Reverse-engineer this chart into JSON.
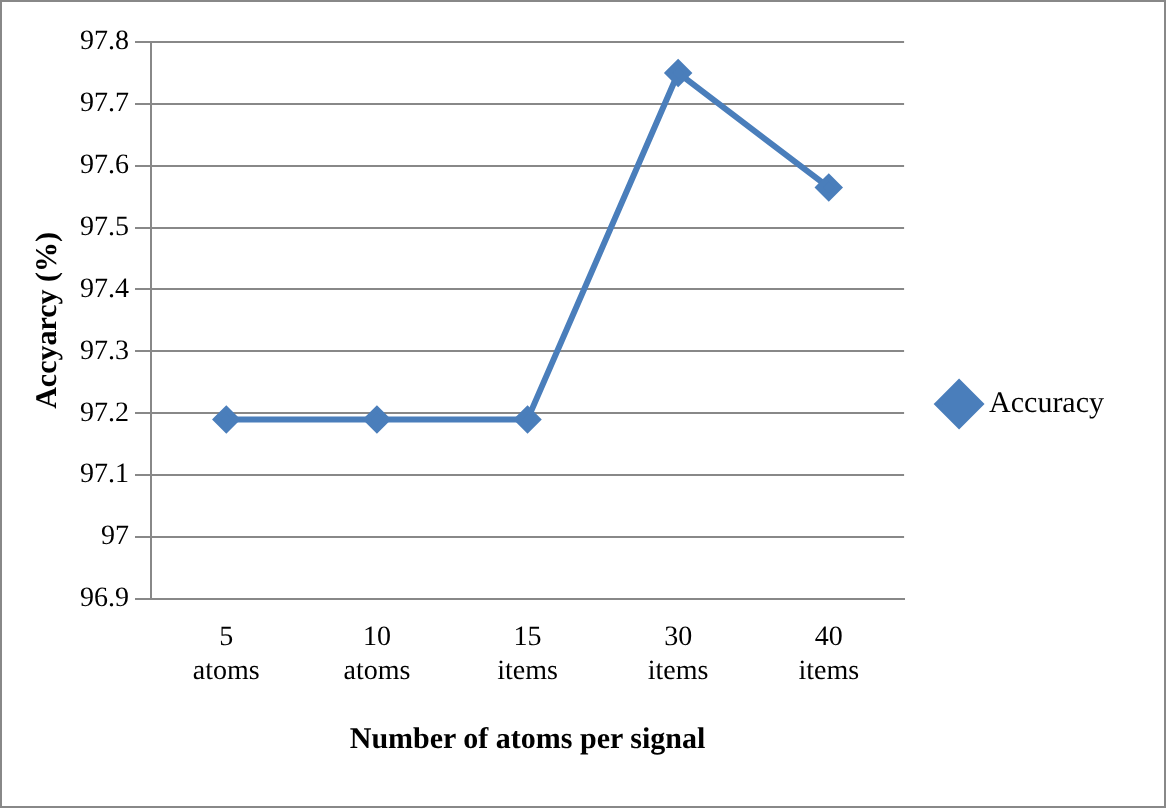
{
  "chart_data": {
    "type": "line",
    "xlabel": "Number of atoms per signal",
    "ylabel": "Accyarcy (%)",
    "categories": [
      "5 atoms",
      "10 atoms",
      "15 items",
      "30 items",
      "40 items"
    ],
    "series": [
      {
        "name": "Accuracy",
        "color": "#4a7ebb",
        "values": [
          97.19,
          97.19,
          97.19,
          97.75,
          97.565
        ]
      }
    ],
    "ylim": [
      96.9,
      97.8
    ],
    "yticks": [
      96.9,
      97,
      97.1,
      97.2,
      97.3,
      97.4,
      97.5,
      97.6,
      97.7,
      97.8
    ],
    "grid": "y",
    "legend": "right",
    "marker": "diamond",
    "line_style": "solid"
  }
}
